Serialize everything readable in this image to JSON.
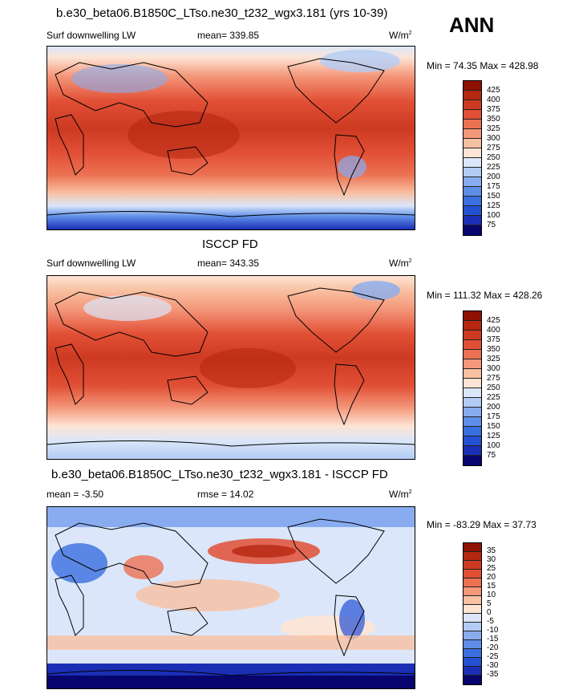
{
  "header": {
    "season": "ANN"
  },
  "colors": {
    "abs_scale": [
      "#08046e",
      "#1a2fb4",
      "#2450d4",
      "#3a6fe0",
      "#5f8ee8",
      "#88acef",
      "#b3ccf5",
      "#dbe6fa",
      "#fde4d4",
      "#f9c0a1",
      "#f4977a",
      "#ec7052",
      "#e14f35",
      "#cd3a22",
      "#b52711",
      "#8e1104"
    ],
    "diff_scale": [
      "#08046e",
      "#1a2fb4",
      "#2450d4",
      "#3a6fe0",
      "#5f8ee8",
      "#88acef",
      "#b3ccf5",
      "#dbe6fa",
      "#fde4d4",
      "#f9c0a1",
      "#f4977a",
      "#ec7052",
      "#e14f35",
      "#cd3a22",
      "#b52711",
      "#8e1104"
    ]
  },
  "chart_data": [
    {
      "type": "heatmap",
      "title": "b.e30_beta06.B1850C_LTso.ne30_t232_wgx3.181 (yrs 10-39)",
      "left_label": "Surf downwelling LW",
      "stat_text": "mean= 339.85",
      "units_base": "W/m",
      "units_exp": "2",
      "min_label": "Min =",
      "min": "74.35",
      "max_label": "Max =",
      "max": "428.98",
      "colorbar_levels": [
        "425",
        "400",
        "375",
        "350",
        "325",
        "300",
        "275",
        "250",
        "225",
        "200",
        "175",
        "150",
        "125",
        "100",
        "75"
      ]
    },
    {
      "type": "heatmap",
      "title": "ISCCP FD",
      "left_label": "Surf downwelling LW",
      "stat_text": "mean= 343.35",
      "units_base": "W/m",
      "units_exp": "2",
      "min_label": "Min =",
      "min": "111.32",
      "max_label": "Max =",
      "max": "428.26",
      "colorbar_levels": [
        "425",
        "400",
        "375",
        "350",
        "325",
        "300",
        "275",
        "250",
        "225",
        "200",
        "175",
        "150",
        "125",
        "100",
        "75"
      ]
    },
    {
      "type": "heatmap",
      "title": "b.e30_beta06.B1850C_LTso.ne30_t232_wgx3.181 - ISCCP FD",
      "left_label": "mean =  -3.50",
      "stat_text": "rmse =  14.02",
      "units_base": "W/m",
      "units_exp": "2",
      "min_label": "Min =",
      "min": "-83.29",
      "max_label": "Max =",
      "max": "37.73",
      "colorbar_levels": [
        "35",
        "30",
        "25",
        "20",
        "15",
        "10",
        "5",
        "0",
        "-5",
        "-10",
        "-15",
        "-20",
        "-25",
        "-30",
        "-35"
      ]
    }
  ]
}
